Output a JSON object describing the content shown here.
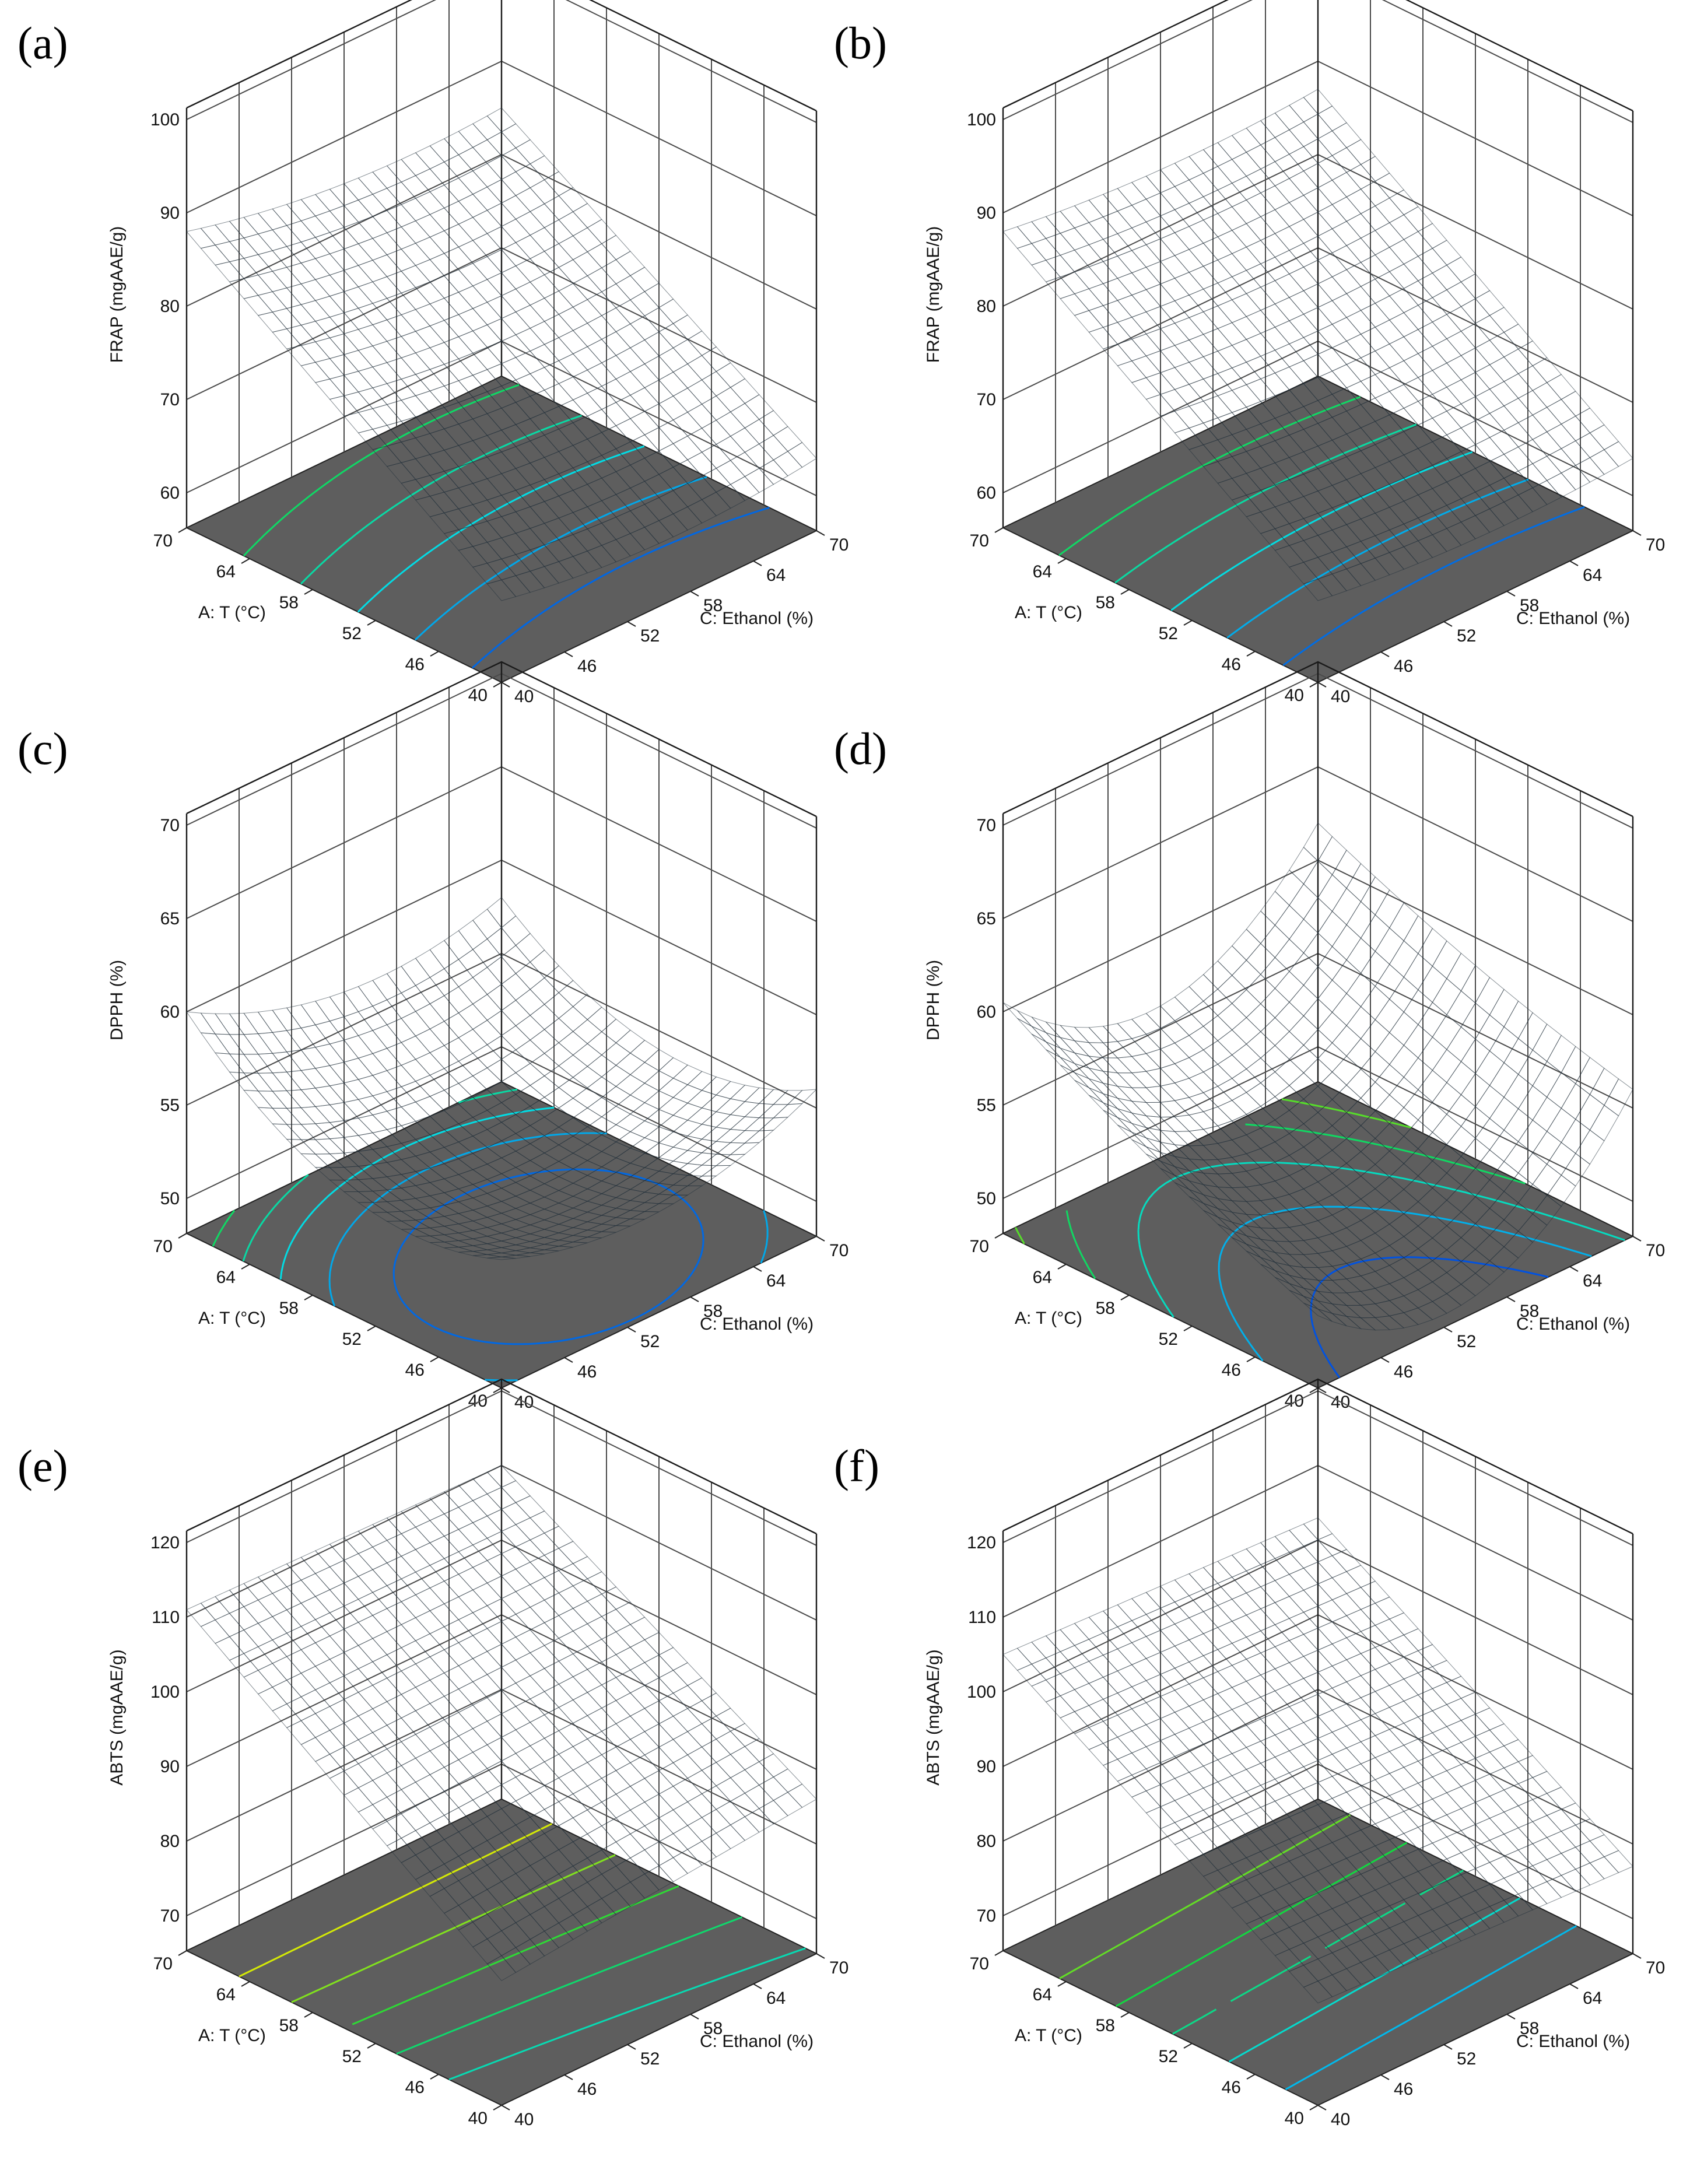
{
  "chart_data": [
    {
      "panel": "(a)",
      "type": "surface3d",
      "xlabel": "A: T (°C)",
      "ylabel": "C: Ethanol (%)",
      "zlabel": "FRAP (mgAAE/g)",
      "x_ticks": [
        "70",
        "64",
        "58",
        "52",
        "46",
        "40"
      ],
      "y_ticks": [
        "40",
        "46",
        "52",
        "58",
        "64",
        "70"
      ],
      "z_ticks": [
        "60",
        "70",
        "80",
        "90",
        "100"
      ],
      "xlim": [
        40,
        70
      ],
      "ylim": [
        40,
        70
      ],
      "zlim": [
        60,
        100
      ],
      "corner_values": {
        "T70_E40": 88,
        "T40_E40": 65,
        "T70_E70": 85,
        "T40_E70": 64
      },
      "curvature_T": 0,
      "curvature_E": 1.5,
      "colormap_range": [
        63,
        110
      ]
    },
    {
      "panel": "(b)",
      "type": "surface3d",
      "xlabel": "A: T (°C)",
      "ylabel": "C: Ethanol (%)",
      "zlabel": "FRAP (mgAAE/g)",
      "x_ticks": [
        "70",
        "64",
        "58",
        "52",
        "46",
        "40"
      ],
      "y_ticks": [
        "40",
        "46",
        "52",
        "58",
        "64",
        "70"
      ],
      "z_ticks": [
        "60",
        "70",
        "80",
        "90",
        "100"
      ],
      "xlim": [
        40,
        70
      ],
      "ylim": [
        40,
        70
      ],
      "zlim": [
        60,
        100
      ],
      "corner_values": {
        "T70_E40": 88,
        "T40_E40": 65,
        "T70_E70": 87,
        "T40_E70": 64
      },
      "curvature_T": 0,
      "curvature_E": 1,
      "colormap_range": [
        63,
        110
      ]
    },
    {
      "panel": "(c)",
      "type": "surface3d",
      "xlabel": "A: T (°C)",
      "ylabel": "C: Ethanol (%)",
      "zlabel": "DPPH (%)",
      "x_ticks": [
        "70",
        "64",
        "58",
        "52",
        "46",
        "40"
      ],
      "y_ticks": [
        "40",
        "46",
        "52",
        "58",
        "64",
        "70"
      ],
      "z_ticks": [
        "50",
        "55",
        "60",
        "65",
        "70"
      ],
      "xlim": [
        40,
        70
      ],
      "ylim": [
        40,
        70
      ],
      "zlim": [
        50,
        70
      ],
      "corner_values": {
        "T70_E40": 60,
        "T40_E40": 55,
        "T70_E70": 58,
        "T40_E70": 56
      },
      "curvature_T": 3,
      "curvature_E": 2,
      "colormap_range": [
        52,
        67
      ]
    },
    {
      "panel": "(d)",
      "type": "surface3d",
      "xlabel": "A: T (°C)",
      "ylabel": "C: Ethanol (%)",
      "zlabel": "DPPH (%)",
      "x_ticks": [
        "70",
        "64",
        "58",
        "52",
        "46",
        "40"
      ],
      "y_ticks": [
        "40",
        "46",
        "52",
        "58",
        "64",
        "70"
      ],
      "z_ticks": [
        "50",
        "55",
        "60",
        "65",
        "70"
      ],
      "xlim": [
        40,
        70
      ],
      "ylim": [
        40,
        70
      ],
      "zlim": [
        50,
        70
      ],
      "corner_values": {
        "T70_E40": 60.5,
        "T40_E40": 52,
        "T70_E70": 62,
        "T40_E70": 56
      },
      "curvature_T": 0.5,
      "curvature_E": 5,
      "colormap_range": [
        50,
        67
      ]
    },
    {
      "panel": "(e)",
      "type": "surface3d",
      "xlabel": "A: T (°C)",
      "ylabel": "C: Ethanol (%)",
      "zlabel": "ABTS (mgAAE/g)",
      "x_ticks": [
        "70",
        "64",
        "58",
        "52",
        "46",
        "40"
      ],
      "y_ticks": [
        "40",
        "46",
        "52",
        "58",
        "64",
        "70"
      ],
      "z_ticks": [
        "70",
        "80",
        "90",
        "100",
        "110",
        "120"
      ],
      "xlim": [
        40,
        70
      ],
      "ylim": [
        40,
        70
      ],
      "zlim": [
        70,
        120
      ],
      "corner_values": {
        "T70_E40": 111,
        "T40_E40": 82,
        "T70_E70": 110,
        "T40_E70": 86
      },
      "curvature_T": 0,
      "curvature_E": 0,
      "colormap_range": [
        70,
        120
      ]
    },
    {
      "panel": "(f)",
      "type": "surface3d",
      "xlabel": "A: T (°C)",
      "ylabel": "C: Ethanol (%)",
      "zlabel": "ABTS (mgAAE/g)",
      "x_ticks": [
        "70",
        "64",
        "58",
        "52",
        "46",
        "40"
      ],
      "y_ticks": [
        "40",
        "46",
        "52",
        "58",
        "64",
        "70"
      ],
      "z_ticks": [
        "70",
        "80",
        "90",
        "100",
        "110",
        "120"
      ],
      "xlim": [
        40,
        70
      ],
      "ylim": [
        40,
        70
      ],
      "zlim": [
        70,
        120
      ],
      "corner_values": {
        "T70_E40": 105,
        "T40_E40": 79,
        "T70_E70": 103,
        "T40_E70": 77
      },
      "curvature_T": 0,
      "curvature_E": 0,
      "colormap_range": [
        72,
        120
      ]
    }
  ]
}
